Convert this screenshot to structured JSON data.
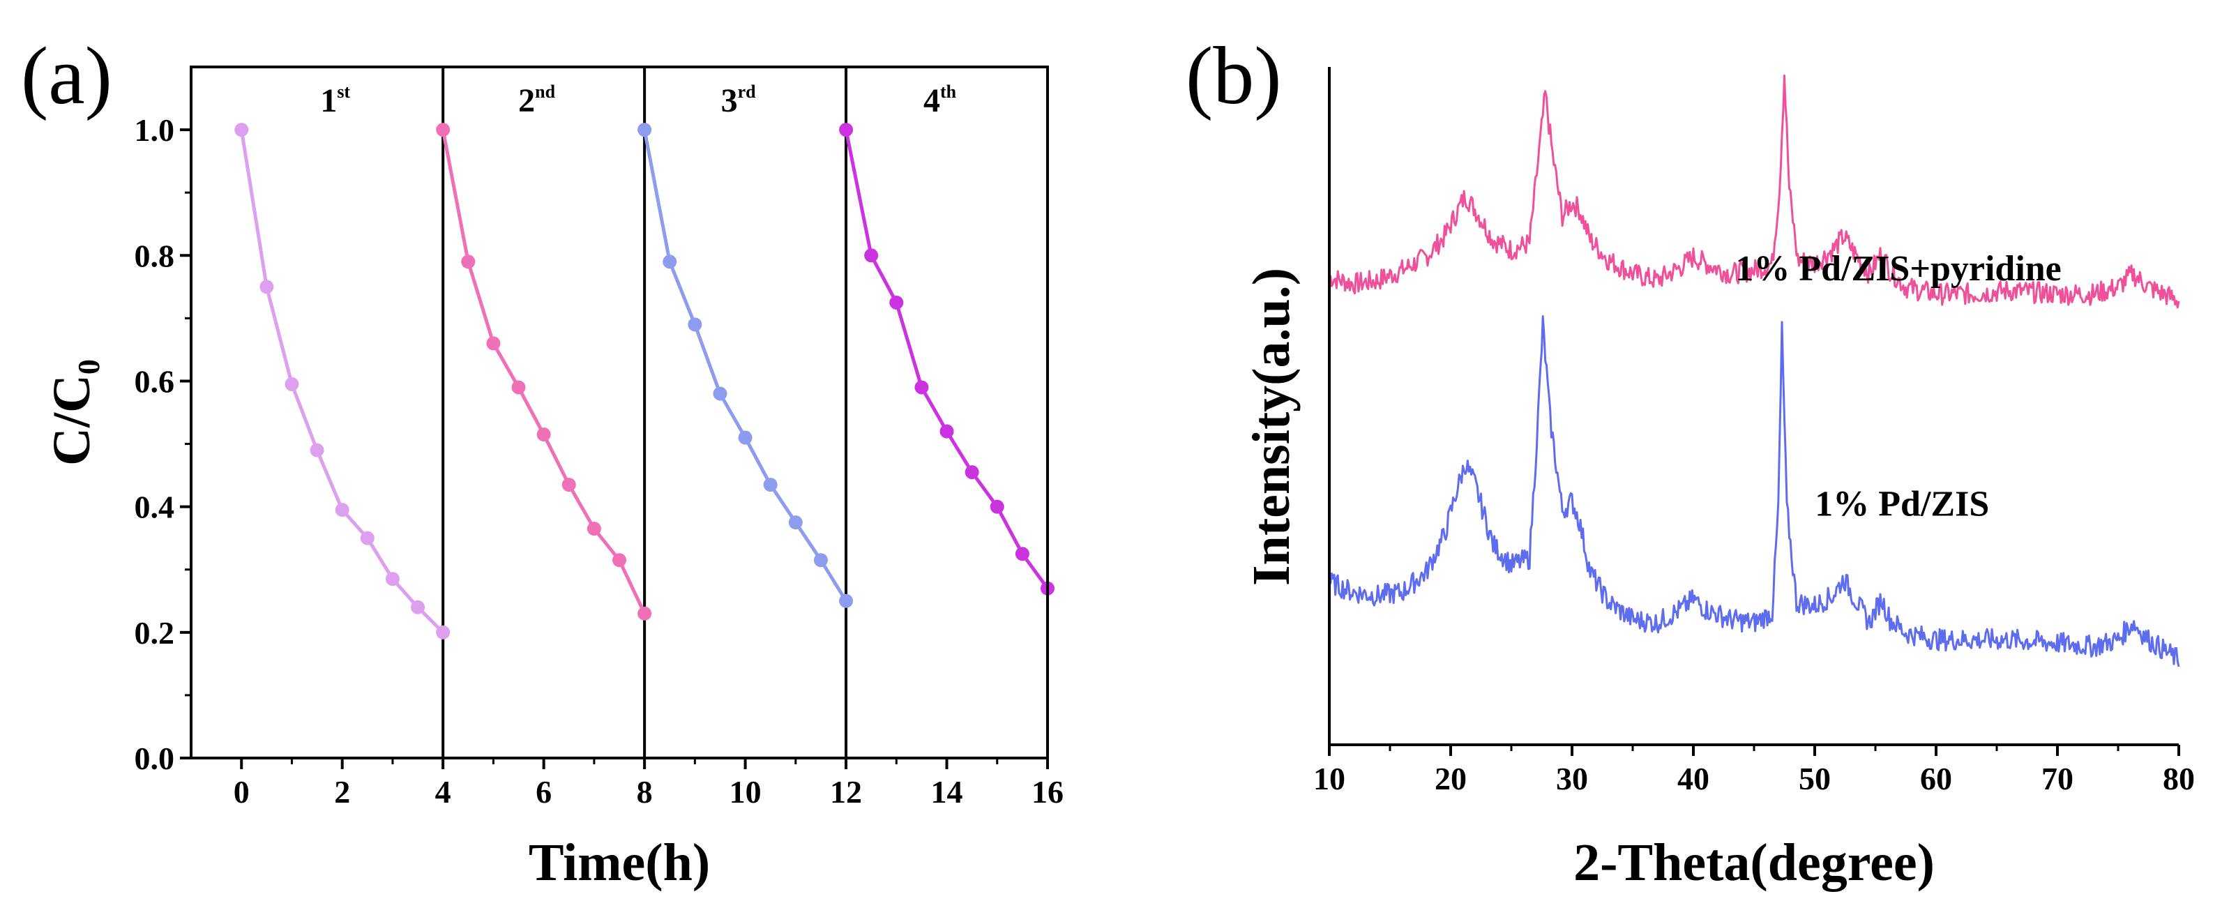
{
  "figure": {
    "panel_a_label": "(a)",
    "panel_b_label": "(b)"
  },
  "chart_data": [
    {
      "type": "line",
      "panel": "(a)",
      "title": "",
      "xlabel": "Time(h)",
      "ylabel_main": "C/C",
      "ylabel_sub": "0",
      "xlim": [
        -1,
        16
      ],
      "ylim": [
        0.0,
        1.1
      ],
      "xticks": [
        0,
        2,
        4,
        6,
        8,
        10,
        12,
        14,
        16
      ],
      "xtick_labels": [
        "0",
        "2",
        "4",
        "6",
        "8",
        "10",
        "12",
        "14",
        "16"
      ],
      "yticks": [
        0.0,
        0.2,
        0.4,
        0.6,
        0.8,
        1.0
      ],
      "ytick_labels": [
        "0.0",
        "0.2",
        "0.4",
        "0.6",
        "0.8",
        "1.0"
      ],
      "dividers": [
        4,
        8,
        12
      ],
      "cycles": [
        {
          "label": "1",
          "sup": "st",
          "center": 2
        },
        {
          "label": "2",
          "sup": "nd",
          "center": 6
        },
        {
          "label": "3",
          "sup": "rd",
          "center": 10
        },
        {
          "label": "4",
          "sup": "th",
          "center": 14
        }
      ],
      "series": [
        {
          "name": "1st",
          "color": "#DCA0EE",
          "x": [
            0,
            0.5,
            1,
            1.5,
            2,
            2.5,
            3,
            3.5,
            4
          ],
          "y": [
            1.0,
            0.75,
            0.595,
            0.49,
            0.395,
            0.35,
            0.285,
            0.24,
            0.2
          ]
        },
        {
          "name": "2nd",
          "color": "#F070B8",
          "x": [
            4,
            4.5,
            5,
            5.5,
            6,
            6.5,
            7,
            7.5,
            8
          ],
          "y": [
            1.0,
            0.79,
            0.66,
            0.59,
            0.515,
            0.435,
            0.365,
            0.315,
            0.23
          ]
        },
        {
          "name": "3rd",
          "color": "#8E9CF0",
          "x": [
            8,
            8.5,
            9,
            9.5,
            10,
            10.5,
            11,
            11.5,
            12
          ],
          "y": [
            1.0,
            0.79,
            0.69,
            0.58,
            0.51,
            0.435,
            0.375,
            0.315,
            0.25
          ]
        },
        {
          "name": "4th",
          "color": "#CC33E0",
          "x": [
            12,
            12.5,
            13,
            13.5,
            14,
            14.5,
            15,
            15.5,
            16
          ],
          "y": [
            1.0,
            0.8,
            0.725,
            0.59,
            0.52,
            0.455,
            0.4,
            0.325,
            0.27
          ]
        }
      ]
    },
    {
      "type": "line",
      "panel": "(b)",
      "title": "",
      "xlabel": "2-Theta(degree)",
      "ylabel": "Intensity(a.u.)",
      "xlim": [
        10,
        80
      ],
      "ylim": [
        0,
        100
      ],
      "yticks_shown": false,
      "xticks": [
        10,
        20,
        30,
        40,
        50,
        60,
        70,
        80
      ],
      "xtick_labels": [
        "10",
        "20",
        "30",
        "40",
        "50",
        "60",
        "70",
        "80"
      ],
      "series": [
        {
          "name": "1% Pd/ZIS+pyridine",
          "color": "#F0509A",
          "x": [
            10,
            12,
            14,
            16,
            18,
            19.5,
            20.5,
            21.2,
            22,
            23.5,
            25,
            26.5,
            27.2,
            27.8,
            28.4,
            29.2,
            30,
            30.6,
            31.5,
            33,
            35,
            37,
            39,
            40,
            41,
            43,
            45,
            46.5,
            47.1,
            47.5,
            47.9,
            48.6,
            50,
            51.5,
            52.4,
            53.3,
            54.5,
            55.5,
            56.2,
            57.5,
            60,
            63,
            66,
            70,
            73,
            75,
            76.2,
            77.5,
            80
          ],
          "y": [
            69,
            68,
            68.5,
            70,
            72,
            75,
            78.5,
            81,
            79,
            74.5,
            73,
            74,
            86,
            96,
            87,
            78,
            80,
            79,
            74.5,
            71.5,
            69.5,
            68.5,
            70.5,
            72,
            71,
            69.5,
            70,
            71,
            82,
            99,
            82,
            71.5,
            71,
            73,
            75,
            72.5,
            69.5,
            72.5,
            70,
            67.5,
            66.5,
            66.5,
            67,
            66.5,
            66.5,
            67.5,
            69.5,
            67.5,
            65.5
          ]
        },
        {
          "name": "1% Pd/ZIS",
          "color": "#5E6CF0",
          "x": [
            10,
            12,
            14,
            16,
            18,
            19.5,
            20.5,
            21.2,
            22,
            23.5,
            25,
            26.5,
            27.1,
            27.6,
            28.2,
            29.2,
            30,
            30.6,
            31.5,
            33,
            35,
            37,
            39,
            40,
            41,
            43,
            45,
            46.5,
            47.0,
            47.3,
            47.7,
            48.5,
            50,
            51.5,
            52.4,
            53.3,
            54.5,
            55.5,
            56.2,
            57.5,
            60,
            63,
            66,
            70,
            73,
            75,
            76.2,
            77.5,
            80
          ],
          "y": [
            24,
            22.5,
            22,
            22.5,
            25.5,
            31,
            37.5,
            41.5,
            38.5,
            29.5,
            26.5,
            27.5,
            45,
            62,
            48,
            34.5,
            36,
            33,
            25.5,
            21,
            18.5,
            18,
            20,
            21.5,
            20,
            18.5,
            18,
            19.5,
            35,
            61,
            35,
            21,
            20.5,
            22,
            24.5,
            21.5,
            18,
            21.5,
            18.5,
            16.5,
            15.5,
            15.5,
            15.5,
            15,
            14.5,
            15.5,
            18,
            15.5,
            12.5
          ]
        }
      ]
    }
  ]
}
